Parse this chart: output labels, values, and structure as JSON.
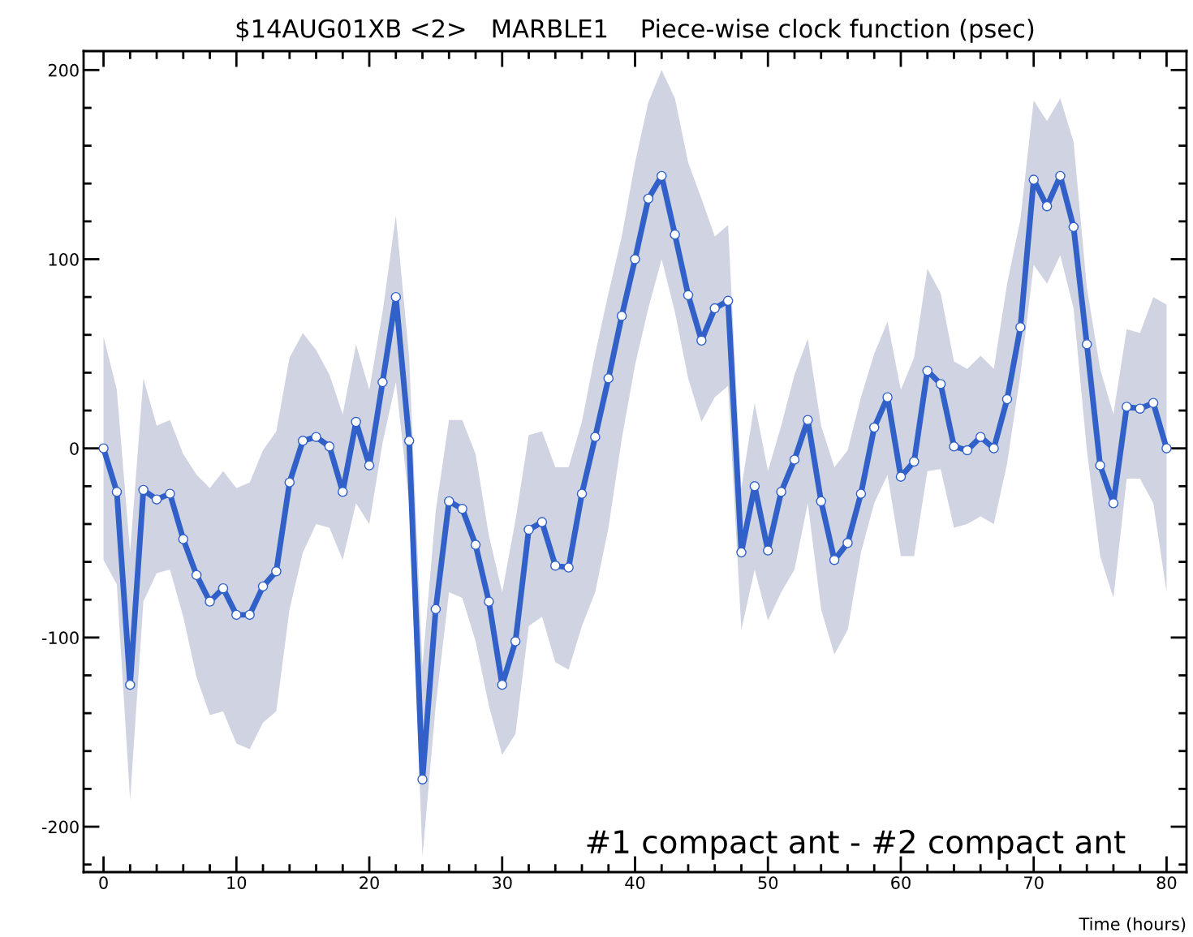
{
  "chart_data": {
    "type": "line",
    "title": "$14AUG01XB <2>   MARBLE1    Piece-wise clock function (psec)",
    "xlabel": "Time (hours)",
    "x": [
      0,
      1,
      2,
      3,
      4,
      5,
      6,
      7,
      8,
      9,
      10,
      11,
      12,
      13,
      14,
      15,
      16,
      17,
      18,
      19,
      20,
      21,
      22,
      23,
      24,
      25,
      26,
      27,
      28,
      29,
      30,
      31,
      32,
      33,
      34,
      35,
      36,
      37,
      38,
      39,
      40,
      41,
      42,
      43,
      44,
      45,
      46,
      47,
      48,
      49,
      50,
      51,
      52,
      53,
      54,
      55,
      56,
      57,
      58,
      59,
      60,
      61,
      62,
      63,
      64,
      65,
      66,
      67,
      68,
      69,
      70,
      71,
      72,
      73,
      74,
      75,
      76,
      77,
      78,
      79,
      80
    ],
    "series": [
      {
        "color": "#3060c8",
        "values": [
          0,
          -23,
          -125,
          -22,
          -27,
          -24,
          -48,
          -67,
          -81,
          -74,
          -88,
          -88,
          -73,
          -65,
          -18,
          4,
          6,
          1,
          -23,
          14,
          -9,
          35,
          80,
          4,
          -175,
          -85,
          -28,
          -32,
          -51,
          -81,
          -125,
          -102,
          -43,
          -39,
          -62,
          -63,
          -24,
          6,
          37,
          70,
          100,
          132,
          144,
          113,
          81,
          57,
          74,
          78,
          -55,
          -20,
          -54,
          -23,
          -6,
          15,
          -28,
          -59,
          -50,
          -24,
          11,
          27,
          -15,
          -7,
          41,
          34,
          1,
          -1,
          6,
          0,
          26,
          64,
          142,
          128,
          144,
          117,
          55,
          -9,
          -29,
          22,
          21,
          24,
          0
        ],
        "upper": [
          59,
          31,
          -55,
          37,
          12,
          15,
          -3,
          -14,
          -21,
          -12,
          -21,
          -18,
          -1,
          9,
          48,
          61,
          52,
          39,
          18,
          55,
          31,
          72,
          123,
          48,
          -115,
          -33,
          15,
          15,
          -3,
          -46,
          -76,
          -38,
          7,
          9,
          -10,
          -10,
          14,
          50,
          82,
          112,
          151,
          183,
          200,
          185,
          151,
          132,
          112,
          118,
          -21,
          24,
          -12,
          12,
          39,
          58,
          12,
          -10,
          -1,
          27,
          50,
          67,
          31,
          48,
          95,
          82,
          46,
          42,
          49,
          42,
          87,
          121,
          184,
          173,
          185,
          162,
          85,
          42,
          18,
          63,
          61,
          80,
          76
        ],
        "lower": [
          -59,
          -72,
          -186,
          -81,
          -66,
          -64,
          -89,
          -121,
          -141,
          -139,
          -156,
          -159,
          -145,
          -139,
          -85,
          -55,
          -40,
          -42,
          -59,
          -29,
          -40,
          3,
          35,
          -29,
          -216,
          -136,
          -76,
          -79,
          -102,
          -136,
          -162,
          -151,
          -94,
          -89,
          -113,
          -117,
          -94,
          -76,
          -42,
          5,
          44,
          74,
          100,
          72,
          37,
          14,
          27,
          33,
          -96,
          -64,
          -91,
          -76,
          -64,
          -29,
          -85,
          -109,
          -96,
          -55,
          -29,
          -14,
          -57,
          -57,
          -12,
          -11,
          -42,
          -40,
          -36,
          -40,
          -8,
          39,
          97,
          87,
          102,
          74,
          -1,
          -57,
          -79,
          -16,
          -16,
          -29,
          -76
        ]
      }
    ],
    "marker": "circle",
    "line_style": "solid",
    "xlim": [
      -1.5,
      81.5
    ],
    "ylim": [
      -224,
      210
    ],
    "xticks": [
      0,
      10,
      20,
      30,
      40,
      50,
      60,
      70,
      80
    ],
    "yticks": [
      -200,
      -100,
      0,
      100,
      200
    ],
    "annotations": [
      "#1 compact ant - #2 compact ant"
    ]
  }
}
